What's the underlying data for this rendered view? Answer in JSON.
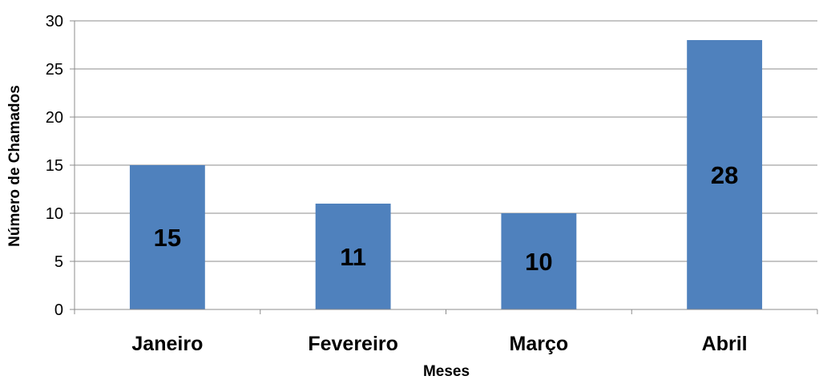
{
  "chart_data": {
    "type": "bar",
    "categories": [
      "Janeiro",
      "Fevereiro",
      "Março",
      "Abril"
    ],
    "values": [
      15,
      11,
      10,
      28
    ],
    "data_labels": [
      "15",
      "11",
      "10",
      "28"
    ],
    "title": "",
    "xlabel": "Meses",
    "ylabel": "Número de Chamados",
    "ylim": [
      0,
      30
    ],
    "yticks": [
      0,
      5,
      10,
      15,
      20,
      25,
      30
    ],
    "ytick_labels": [
      "0",
      "5",
      "10",
      "15",
      "20",
      "25",
      "30"
    ],
    "grid": true,
    "legend": "none",
    "bar_color": "#4f81bd",
    "grid_color": "#8c8c8c"
  }
}
